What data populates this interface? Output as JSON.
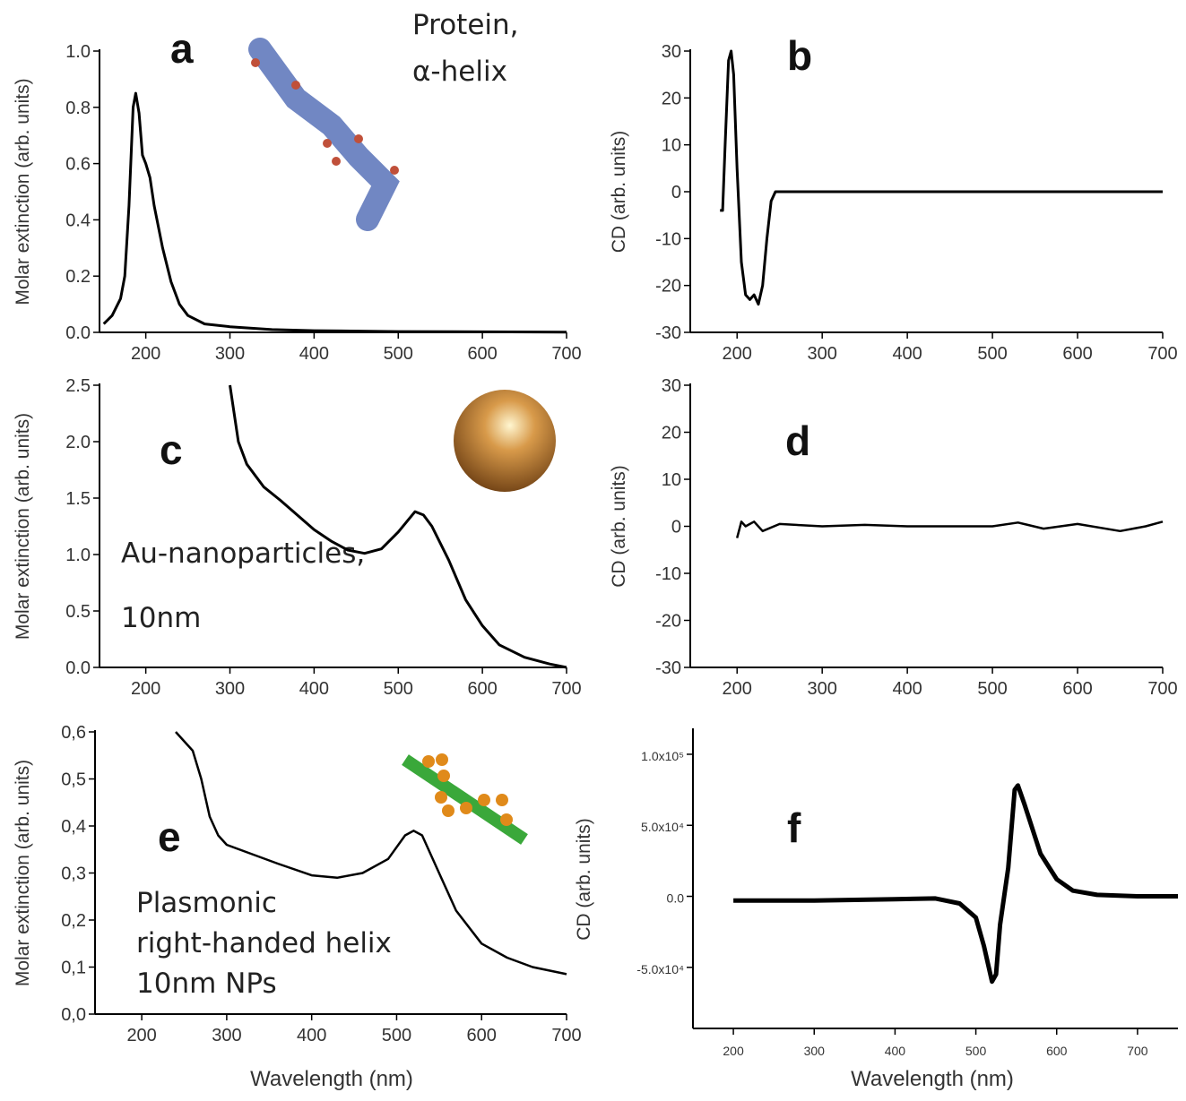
{
  "chart_data": [
    {
      "type": "line",
      "panel_label": "a",
      "annotation": [
        "Protein,",
        "α-helix"
      ],
      "y_label": "Molar extinction (arb. units)",
      "color": "#000000",
      "x": [
        150,
        160,
        170,
        175,
        180,
        185,
        188,
        192,
        196,
        200,
        205,
        210,
        220,
        230,
        240,
        250,
        270,
        300,
        350,
        400,
        500,
        600,
        700
      ],
      "values": [
        0.03,
        0.06,
        0.12,
        0.2,
        0.45,
        0.8,
        0.85,
        0.78,
        0.63,
        0.6,
        0.55,
        0.45,
        0.3,
        0.18,
        0.1,
        0.06,
        0.03,
        0.02,
        0.01,
        0.006,
        0.003,
        0.002,
        0.001
      ],
      "xlim": [
        145,
        700
      ],
      "ylim": [
        0,
        1.0
      ],
      "xticks": [
        200,
        300,
        400,
        500,
        600,
        700
      ],
      "yticks": [
        {
          "value": 0,
          "label": "0.0"
        },
        0.2,
        0.4,
        0.6,
        0.8,
        {
          "value": 1.0,
          "label": "1.0"
        }
      ]
    },
    {
      "type": "line",
      "panel_label": "b",
      "y_label": "CD (arb. units)",
      "color": "#000000",
      "x": [
        180,
        183,
        186,
        190,
        193,
        196,
        200,
        205,
        210,
        215,
        220,
        225,
        230,
        235,
        240,
        245,
        250,
        300,
        400,
        500,
        600,
        700
      ],
      "values": [
        -4,
        -4,
        10,
        28,
        30,
        25,
        5,
        -15,
        -22,
        -23,
        -22,
        -24,
        -20,
        -10,
        -2,
        0,
        0,
        0,
        0,
        0,
        0,
        0
      ],
      "xlim": [
        145,
        700
      ],
      "ylim": [
        -30,
        30
      ],
      "xticks": [
        200,
        300,
        400,
        500,
        600,
        700
      ],
      "yticks": [
        -30,
        -20,
        -10,
        0,
        10,
        20,
        30
      ]
    },
    {
      "type": "line",
      "panel_label": "c",
      "annotation": [
        "Au-nanoparticles,",
        "10nm"
      ],
      "y_label": "Molar extinction (arb. units)",
      "color": "#000000",
      "x": [
        300,
        310,
        320,
        340,
        360,
        380,
        400,
        420,
        440,
        460,
        480,
        500,
        520,
        530,
        540,
        560,
        580,
        600,
        620,
        650,
        680,
        700
      ],
      "values": [
        2.5,
        2.0,
        1.8,
        1.6,
        1.48,
        1.35,
        1.22,
        1.12,
        1.04,
        1.01,
        1.05,
        1.2,
        1.38,
        1.35,
        1.25,
        0.95,
        0.6,
        0.37,
        0.2,
        0.09,
        0.03,
        0.0
      ],
      "xlim": [
        145,
        700
      ],
      "ylim": [
        0,
        2.5
      ],
      "xticks": [
        200,
        300,
        400,
        500,
        600,
        700
      ],
      "yticks": [
        {
          "value": 0,
          "label": "0.0"
        },
        0.5,
        {
          "value": 1,
          "label": "1.0"
        },
        1.5,
        {
          "value": 2,
          "label": "2.0"
        },
        2.5
      ]
    },
    {
      "type": "line",
      "panel_label": "d",
      "y_label": "CD (arb. units)",
      "color": "#000000",
      "x": [
        200,
        205,
        210,
        220,
        230,
        250,
        300,
        350,
        400,
        450,
        500,
        530,
        560,
        600,
        650,
        680,
        700
      ],
      "values": [
        -2.5,
        1,
        0,
        1,
        -1,
        0.5,
        0,
        0.3,
        0,
        0,
        0,
        0.8,
        -0.5,
        0.5,
        -1,
        0,
        1
      ],
      "xlim": [
        145,
        700
      ],
      "ylim": [
        -30,
        30
      ],
      "xticks": [
        200,
        300,
        400,
        500,
        600,
        700
      ],
      "yticks": [
        -30,
        -20,
        -10,
        0,
        10,
        20,
        30
      ]
    },
    {
      "type": "line",
      "panel_label": "e",
      "annotation": [
        "Plasmonic",
        "right-handed helix",
        "10nm NPs"
      ],
      "y_label": "Molar extinction (arb. units)",
      "x_label": "Wavelength (nm)",
      "color": "#000000",
      "x": [
        240,
        250,
        260,
        270,
        280,
        290,
        300,
        330,
        360,
        400,
        430,
        460,
        490,
        510,
        520,
        530,
        550,
        570,
        600,
        630,
        660,
        700
      ],
      "values": [
        0.6,
        0.58,
        0.56,
        0.5,
        0.42,
        0.38,
        0.36,
        0.34,
        0.32,
        0.295,
        0.29,
        0.3,
        0.33,
        0.38,
        0.39,
        0.38,
        0.3,
        0.22,
        0.15,
        0.12,
        0.1,
        0.085
      ],
      "xlim": [
        145,
        700
      ],
      "ylim": [
        0,
        0.6
      ],
      "xticks": [
        200,
        300,
        400,
        500,
        600,
        700
      ],
      "yticks": [
        {
          "value": 0,
          "label": "0,0"
        },
        {
          "value": 0.1,
          "label": "0,1"
        },
        {
          "value": 0.2,
          "label": "0,2"
        },
        {
          "value": 0.3,
          "label": "0,3"
        },
        {
          "value": 0.4,
          "label": "0,4"
        },
        {
          "value": 0.5,
          "label": "0,5"
        },
        {
          "value": 0.6,
          "label": "0,6"
        }
      ]
    },
    {
      "type": "line",
      "panel_label": "f",
      "y_label": "CD (arb. units)",
      "x_label": "Wavelength (nm)",
      "color": "#000000",
      "x": [
        200,
        300,
        400,
        450,
        480,
        500,
        510,
        520,
        525,
        530,
        540,
        548,
        552,
        560,
        580,
        600,
        620,
        650,
        700,
        750
      ],
      "values": [
        -3000,
        -3000,
        -2000,
        -1500,
        -5000,
        -15000,
        -35000,
        -60000,
        -55000,
        -20000,
        20000,
        75000,
        78000,
        65000,
        30000,
        12000,
        4000,
        1000,
        0,
        0
      ],
      "xlim": [
        150,
        750
      ],
      "ylim": [
        -93000,
        117000
      ],
      "xticks": [
        200,
        300,
        400,
        500,
        600,
        700
      ],
      "yticks": [
        {
          "value": -50000,
          "label": "-5.0x10⁴"
        },
        {
          "value": 0,
          "label": "0.0"
        },
        {
          "value": 50000,
          "label": "5.0x10⁴"
        },
        {
          "value": 100000,
          "label": "1.0x10⁵"
        }
      ]
    }
  ]
}
